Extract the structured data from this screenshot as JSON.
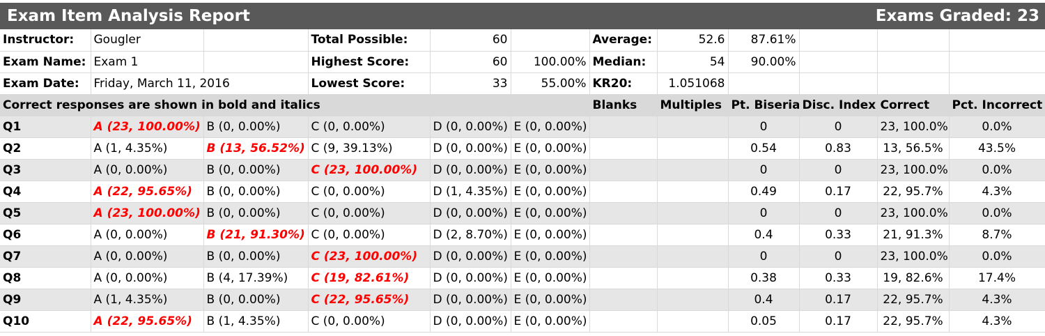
{
  "report": {
    "title": "Exam Item Analysis Report",
    "exams_graded": "Exams Graded: 23"
  },
  "info": {
    "instructor_label": "Instructor:",
    "instructor": "Gougler",
    "exam_name_label": "Exam Name:",
    "exam_name": "Exam 1",
    "exam_date_label": "Exam Date:",
    "exam_date": "Friday, March 11, 2016",
    "total_possible_label": "Total Possible:",
    "total_possible": "60",
    "highest_label": "Highest Score:",
    "highest": "60",
    "highest_pct": "100.00%",
    "lowest_label": "Lowest Score:",
    "lowest": "33",
    "lowest_pct": "55.00%",
    "average_label": "Average:",
    "average": "52.6",
    "average_pct": "87.61%",
    "median_label": "Median:",
    "median": "54",
    "median_pct": "90.00%",
    "kr20_label": "KR20:",
    "kr20": "1.051068"
  },
  "headers": {
    "note": "Correct responses are shown in bold and italics",
    "blanks": "Blanks",
    "multiples": "Multiples",
    "pt_biserial": "Pt. Biserial",
    "disc_index": "Disc. Index",
    "correct": "Correct",
    "pct_incorrect": "Pct. Incorrect"
  },
  "questions": [
    {
      "q": "Q1",
      "a": "A (23, 100.00%)",
      "b": "B (0, 0.00%)",
      "c": "C (0, 0.00%)",
      "d": "D (0, 0.00%)",
      "e": "E (0, 0.00%)",
      "key": "a",
      "blanks": "",
      "multiples": "",
      "pb": "0",
      "di": "0",
      "correct": "23, 100.0%",
      "pct_incorrect": "0.0%"
    },
    {
      "q": "Q2",
      "a": "A (1, 4.35%)",
      "b": "B (13, 56.52%)",
      "c": "C (9, 39.13%)",
      "d": "D (0, 0.00%)",
      "e": "E (0, 0.00%)",
      "key": "b",
      "blanks": "",
      "multiples": "",
      "pb": "0.54",
      "di": "0.83",
      "correct": "13, 56.5%",
      "pct_incorrect": "43.5%"
    },
    {
      "q": "Q3",
      "a": "A (0, 0.00%)",
      "b": "B (0, 0.00%)",
      "c": "C (23, 100.00%)",
      "d": "D (0, 0.00%)",
      "e": "E (0, 0.00%)",
      "key": "c",
      "blanks": "",
      "multiples": "",
      "pb": "0",
      "di": "0",
      "correct": "23, 100.0%",
      "pct_incorrect": "0.0%"
    },
    {
      "q": "Q4",
      "a": "A (22, 95.65%)",
      "b": "B (0, 0.00%)",
      "c": "C (0, 0.00%)",
      "d": "D (1, 4.35%)",
      "e": "E (0, 0.00%)",
      "key": "a",
      "blanks": "",
      "multiples": "",
      "pb": "0.49",
      "di": "0.17",
      "correct": "22, 95.7%",
      "pct_incorrect": "4.3%"
    },
    {
      "q": "Q5",
      "a": "A (23, 100.00%)",
      "b": "B (0, 0.00%)",
      "c": "C (0, 0.00%)",
      "d": "D (0, 0.00%)",
      "e": "E (0, 0.00%)",
      "key": "a",
      "blanks": "",
      "multiples": "",
      "pb": "0",
      "di": "0",
      "correct": "23, 100.0%",
      "pct_incorrect": "0.0%"
    },
    {
      "q": "Q6",
      "a": "A (0, 0.00%)",
      "b": "B (21, 91.30%)",
      "c": "C (0, 0.00%)",
      "d": "D (2, 8.70%)",
      "e": "E (0, 0.00%)",
      "key": "b",
      "blanks": "",
      "multiples": "",
      "pb": "0.4",
      "di": "0.33",
      "correct": "21, 91.3%",
      "pct_incorrect": "8.7%"
    },
    {
      "q": "Q7",
      "a": "A (0, 0.00%)",
      "b": "B (0, 0.00%)",
      "c": "C (23, 100.00%)",
      "d": "D (0, 0.00%)",
      "e": "E (0, 0.00%)",
      "key": "c",
      "blanks": "",
      "multiples": "",
      "pb": "0",
      "di": "0",
      "correct": "23, 100.0%",
      "pct_incorrect": "0.0%"
    },
    {
      "q": "Q8",
      "a": "A (0, 0.00%)",
      "b": "B (4, 17.39%)",
      "c": "C (19, 82.61%)",
      "d": "D (0, 0.00%)",
      "e": "E (0, 0.00%)",
      "key": "c",
      "blanks": "",
      "multiples": "",
      "pb": "0.38",
      "di": "0.33",
      "correct": "19, 82.6%",
      "pct_incorrect": "17.4%"
    },
    {
      "q": "Q9",
      "a": "A (1, 4.35%)",
      "b": "B (0, 0.00%)",
      "c": "C (22, 95.65%)",
      "d": "D (0, 0.00%)",
      "e": "E (0, 0.00%)",
      "key": "c",
      "blanks": "",
      "multiples": "",
      "pb": "0.4",
      "di": "0.17",
      "correct": "22, 95.7%",
      "pct_incorrect": "4.3%"
    },
    {
      "q": "Q10",
      "a": "A (22, 95.65%)",
      "b": "B (1, 4.35%)",
      "c": "C (0, 0.00%)",
      "d": "D (0, 0.00%)",
      "e": "E (0, 0.00%)",
      "key": "a",
      "blanks": "",
      "multiples": "",
      "pb": "0.05",
      "di": "0.17",
      "correct": "22, 95.7%",
      "pct_incorrect": "4.3%"
    }
  ],
  "colors": {
    "title_bar": "#595959",
    "section_bg": "#d9d9d9",
    "row_shade": "#e6e6e6",
    "correct_answer": "#ff0000"
  }
}
